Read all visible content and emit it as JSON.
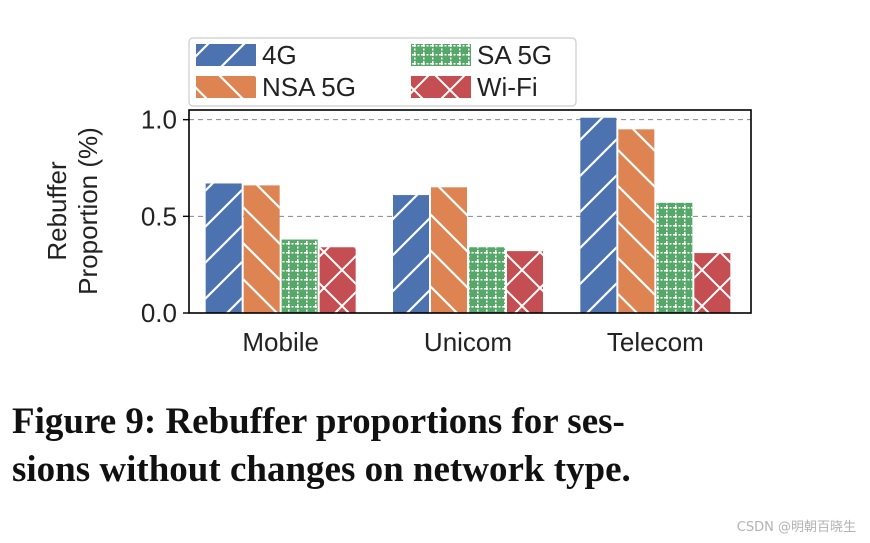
{
  "chart_data": {
    "type": "bar",
    "categories": [
      "Mobile",
      "Unicom",
      "Telecom"
    ],
    "series": [
      {
        "name": "4G",
        "values": [
          0.67,
          0.61,
          1.01
        ]
      },
      {
        "name": "NSA 5G",
        "values": [
          0.66,
          0.65,
          0.95
        ]
      },
      {
        "name": "SA 5G",
        "values": [
          0.38,
          0.34,
          0.57
        ]
      },
      {
        "name": "Wi-Fi",
        "values": [
          0.34,
          0.32,
          0.31
        ]
      }
    ],
    "colors": [
      "#4c72b0",
      "#dd8452",
      "#55a868",
      "#c44e52"
    ],
    "patterns": [
      "diagonal-slash",
      "diagonal-backslash",
      "grid",
      "cross-hatch"
    ],
    "ylabel": [
      "Rebuffer",
      "Proportion (%)"
    ],
    "xlabel": "",
    "yticks": [
      "0.0",
      "0.5",
      "1.0"
    ],
    "ytick_values": [
      0.0,
      0.5,
      1.0
    ],
    "ylim": [
      0,
      1.05
    ],
    "grid": "horizontal dashed at 0.5 and 1.0",
    "legend_position": "top, above plot, two columns"
  },
  "caption": {
    "line1": "Figure 9: Rebuffer proportions for ses-",
    "line2": "sions without changes on network type."
  },
  "watermark": "CSDN @明朝百晓生"
}
